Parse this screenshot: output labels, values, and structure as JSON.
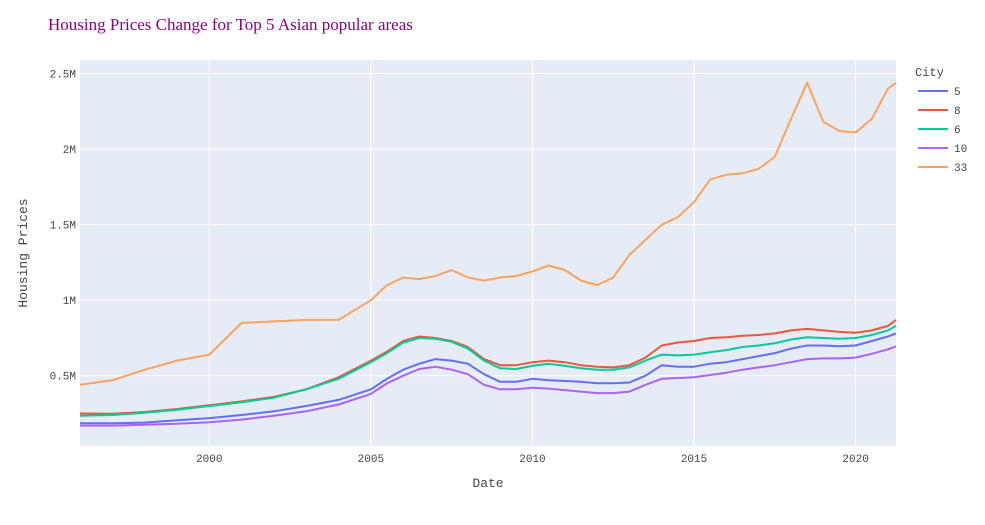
{
  "chart_data": {
    "type": "line",
    "title": "Housing Prices Change for Top 5 Asian popular areas",
    "xlabel": "Date",
    "ylabel": "Housing Prices",
    "legend_title": "City",
    "legend_position": "right",
    "grid": true,
    "xlim": [
      1996.0,
      2021.25
    ],
    "ylim": [
      35000,
      2590000
    ],
    "x_ticks": [
      2000,
      2005,
      2010,
      2015,
      2020
    ],
    "x_tick_labels": [
      "2000",
      "2005",
      "2010",
      "2015",
      "2020"
    ],
    "y_ticks": [
      500000,
      1000000,
      1500000,
      2000000,
      2500000
    ],
    "y_tick_labels": [
      "0.5M",
      "1M",
      "1.5M",
      "2M",
      "2.5M"
    ],
    "x": [
      1996.0,
      1997.0,
      1998.0,
      1999.0,
      2000.0,
      2001.0,
      2002.0,
      2003.0,
      2004.0,
      2005.0,
      2005.5,
      2006.0,
      2006.5,
      2007.0,
      2007.5,
      2008.0,
      2008.5,
      2009.0,
      2009.5,
      2010.0,
      2010.5,
      2011.0,
      2011.5,
      2012.0,
      2012.5,
      2013.0,
      2013.5,
      2014.0,
      2014.5,
      2015.0,
      2015.5,
      2016.0,
      2016.5,
      2017.0,
      2017.5,
      2018.0,
      2018.5,
      2019.0,
      2019.5,
      2020.0,
      2020.5,
      2021.0,
      2021.25
    ],
    "series": [
      {
        "name": "5",
        "color": "#636efa",
        "values": [
          185000,
          185000,
          190000,
          205000,
          220000,
          240000,
          265000,
          300000,
          340000,
          410000,
          480000,
          540000,
          580000,
          610000,
          600000,
          580000,
          510000,
          460000,
          460000,
          480000,
          470000,
          465000,
          460000,
          450000,
          450000,
          455000,
          500000,
          570000,
          560000,
          560000,
          580000,
          590000,
          610000,
          630000,
          650000,
          680000,
          700000,
          700000,
          695000,
          700000,
          730000,
          760000,
          780000
        ]
      },
      {
        "name": "8",
        "color": "#ef553b",
        "values": [
          250000,
          248000,
          260000,
          280000,
          305000,
          330000,
          360000,
          410000,
          490000,
          600000,
          660000,
          730000,
          760000,
          750000,
          730000,
          690000,
          610000,
          570000,
          570000,
          590000,
          600000,
          590000,
          570000,
          560000,
          555000,
          570000,
          620000,
          700000,
          720000,
          730000,
          750000,
          755000,
          765000,
          770000,
          780000,
          800000,
          810000,
          800000,
          790000,
          785000,
          800000,
          830000,
          870000
        ]
      },
      {
        "name": "6",
        "color": "#00cc96",
        "values": [
          235000,
          240000,
          255000,
          275000,
          300000,
          325000,
          355000,
          410000,
          480000,
          590000,
          650000,
          720000,
          750000,
          745000,
          725000,
          680000,
          600000,
          550000,
          545000,
          565000,
          580000,
          565000,
          550000,
          540000,
          540000,
          555000,
          600000,
          640000,
          635000,
          640000,
          655000,
          670000,
          690000,
          700000,
          715000,
          740000,
          755000,
          750000,
          745000,
          750000,
          770000,
          800000,
          830000
        ]
      },
      {
        "name": "10",
        "color": "#ab63fa",
        "values": [
          170000,
          170000,
          175000,
          182000,
          192000,
          210000,
          235000,
          265000,
          310000,
          380000,
          450000,
          500000,
          545000,
          560000,
          540000,
          510000,
          440000,
          410000,
          410000,
          420000,
          415000,
          405000,
          395000,
          385000,
          385000,
          395000,
          440000,
          480000,
          485000,
          490000,
          505000,
          520000,
          540000,
          555000,
          570000,
          590000,
          610000,
          615000,
          615000,
          620000,
          645000,
          675000,
          695000
        ]
      },
      {
        "name": "33",
        "color": "#ffa15a",
        "values": [
          440000,
          470000,
          540000,
          600000,
          640000,
          850000,
          860000,
          870000,
          870000,
          1000000,
          1100000,
          1150000,
          1140000,
          1160000,
          1200000,
          1150000,
          1130000,
          1150000,
          1160000,
          1190000,
          1230000,
          1200000,
          1130000,
          1100000,
          1150000,
          1300000,
          1400000,
          1500000,
          1550000,
          1650000,
          1800000,
          1830000,
          1840000,
          1870000,
          1950000,
          2200000,
          2440000,
          2180000,
          2120000,
          2110000,
          2200000,
          2400000,
          2440000
        ]
      }
    ]
  }
}
